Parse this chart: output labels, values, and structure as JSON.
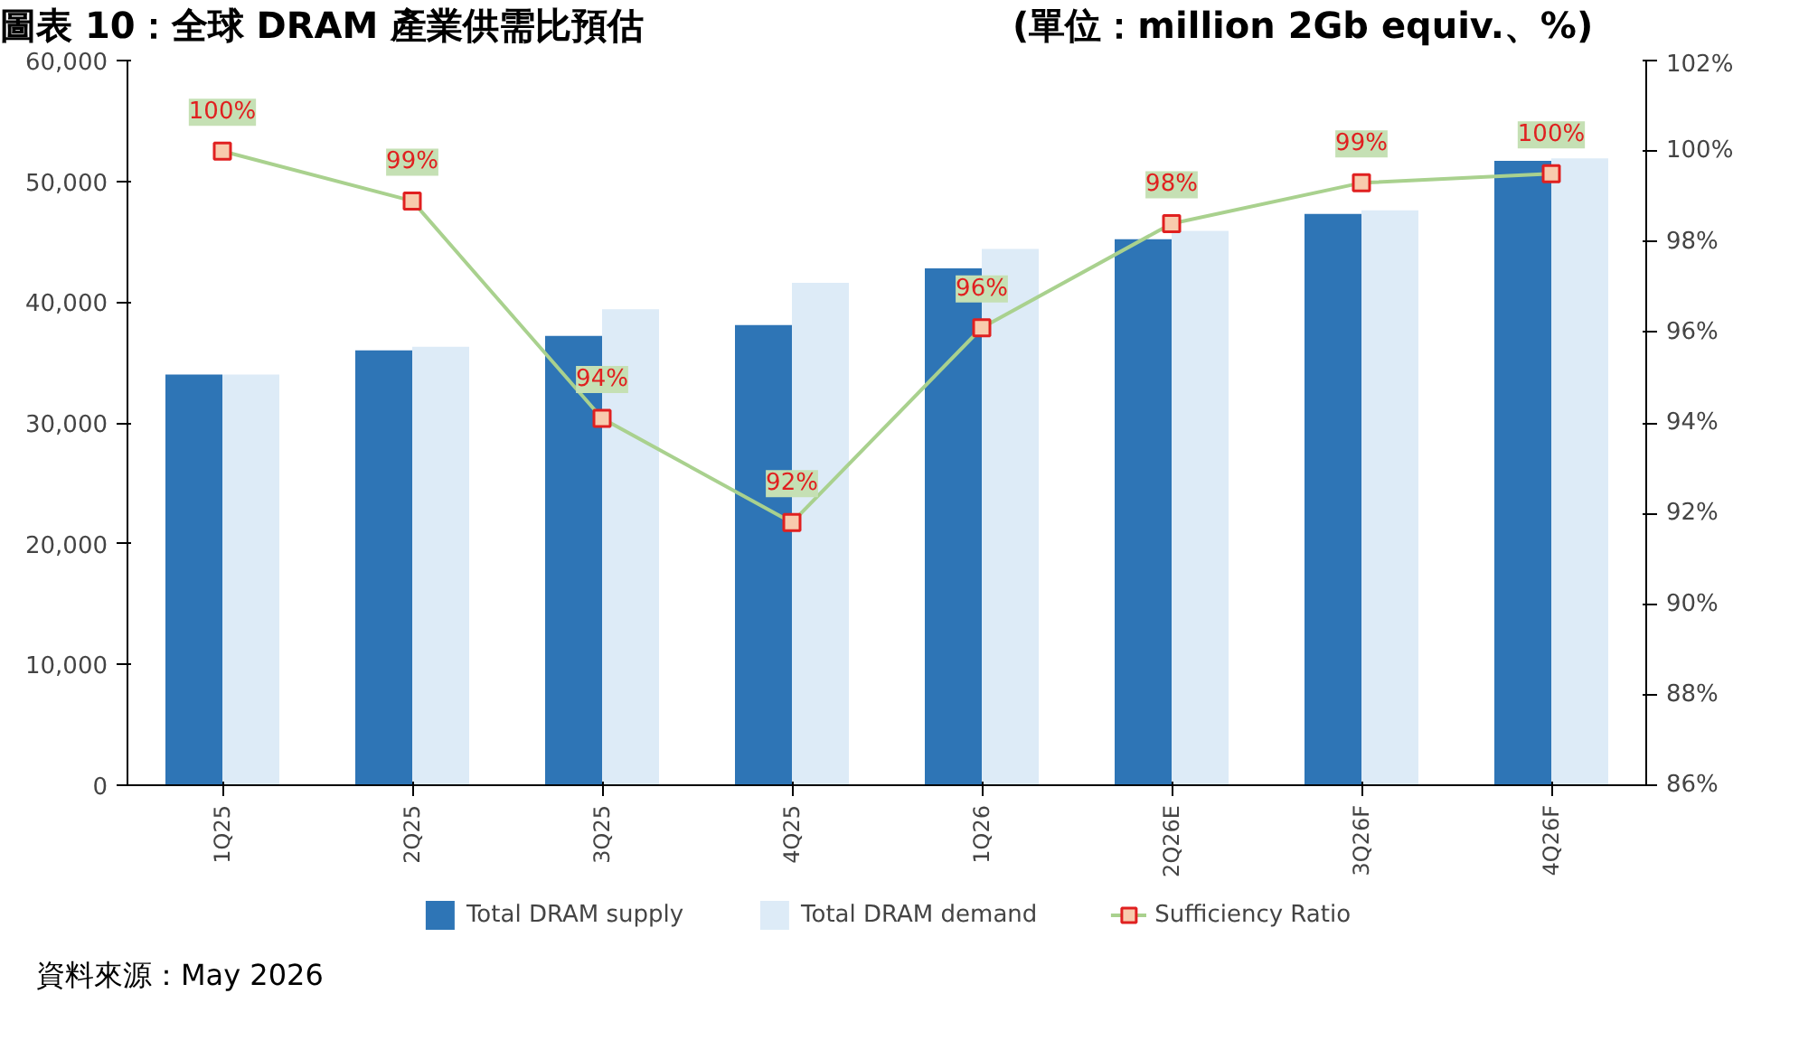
{
  "chart_data": {
    "type": "bar",
    "title": "圖表 10：全球 DRAM 產業供需比預估",
    "subtitle": "(單位：million 2Gb equiv.、%)",
    "annotations": [
      "資料來源：May 2026"
    ],
    "categories": [
      "1Q25",
      "2Q25",
      "3Q25",
      "4Q25",
      "1Q26",
      "2Q26E",
      "3Q26F",
      "4Q26F"
    ],
    "series": [
      {
        "name": "Total DRAM supply",
        "color": "#2e75b6",
        "values": [
          34000,
          36000,
          37200,
          38100,
          42800,
          45200,
          47300,
          51700
        ]
      },
      {
        "name": "Total DRAM demand",
        "color": "#ddebf7",
        "values": [
          34000,
          36300,
          39400,
          41600,
          44400,
          45900,
          47600,
          51900
        ]
      },
      {
        "name": "Sufficiency Ratio",
        "type": "line",
        "axis": "y2",
        "color": "#a9d18e",
        "marker": "square",
        "values": [
          100.0,
          98.9,
          94.1,
          91.8,
          96.1,
          98.4,
          99.3,
          99.5
        ],
        "value_labels": [
          "100%",
          "99%",
          "94%",
          "92%",
          "96%",
          "98%",
          "99%",
          "100%"
        ]
      }
    ],
    "ylim": [
      0,
      60000
    ],
    "yticks": [
      0,
      {
        "value": 10000,
        "label": "10,000"
      },
      {
        "value": 20000,
        "label": "20,000"
      },
      {
        "value": 30000,
        "label": "30,000"
      },
      {
        "value": 40000,
        "label": "40,000"
      },
      {
        "value": 50000,
        "label": "50,000"
      },
      {
        "value": 60000,
        "label": "60,000"
      }
    ],
    "y2lim": [
      86,
      102
    ],
    "y2ticks": [
      {
        "value": 86,
        "label": "86%"
      },
      {
        "value": 88,
        "label": "88%"
      },
      {
        "value": 90,
        "label": "90%"
      },
      {
        "value": 92,
        "label": "92%"
      },
      {
        "value": 94,
        "label": "94%"
      },
      {
        "value": 96,
        "label": "96%"
      },
      {
        "value": 98,
        "label": "98%"
      },
      {
        "value": 100,
        "label": "100%"
      },
      {
        "value": 102,
        "label": "102%"
      }
    ],
    "legend": "bottom"
  }
}
